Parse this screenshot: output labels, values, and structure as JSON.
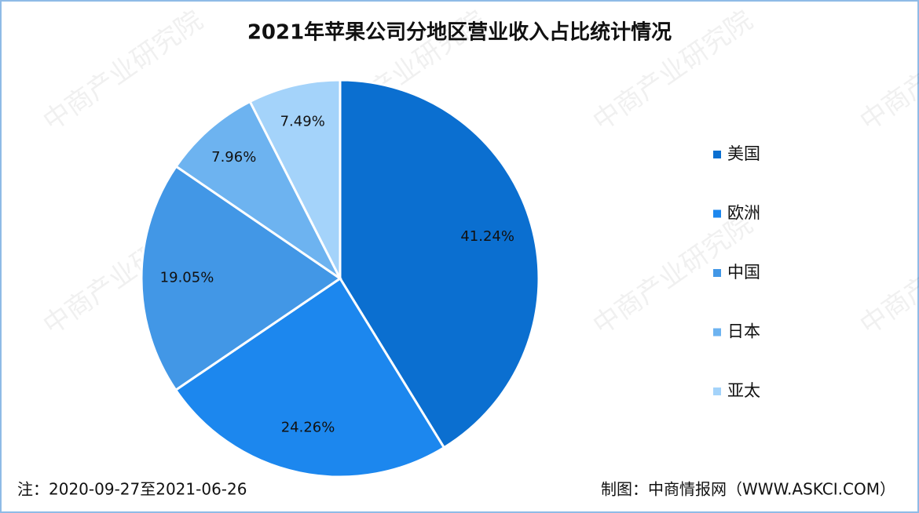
{
  "chart_data": {
    "type": "pie",
    "title": "2021年苹果公司分地区营业收入占比统计情况",
    "categories": [
      "美国",
      "欧洲",
      "中国",
      "日本",
      "亚太"
    ],
    "values": [
      41.24,
      24.26,
      19.05,
      7.96,
      7.49
    ],
    "value_labels": [
      "41.24%",
      "24.26%",
      "19.05%",
      "7.96%",
      "7.49%"
    ],
    "colors": [
      "#0b6fd0",
      "#1c87ee",
      "#4297e6",
      "#6db3f0",
      "#a4d3fa"
    ],
    "legend": "right",
    "note": "注：2020-09-27至2021-06-26",
    "source": "制图：中商情报网（WWW.ASKCI.COM）",
    "watermark": "中商产业研究院"
  }
}
